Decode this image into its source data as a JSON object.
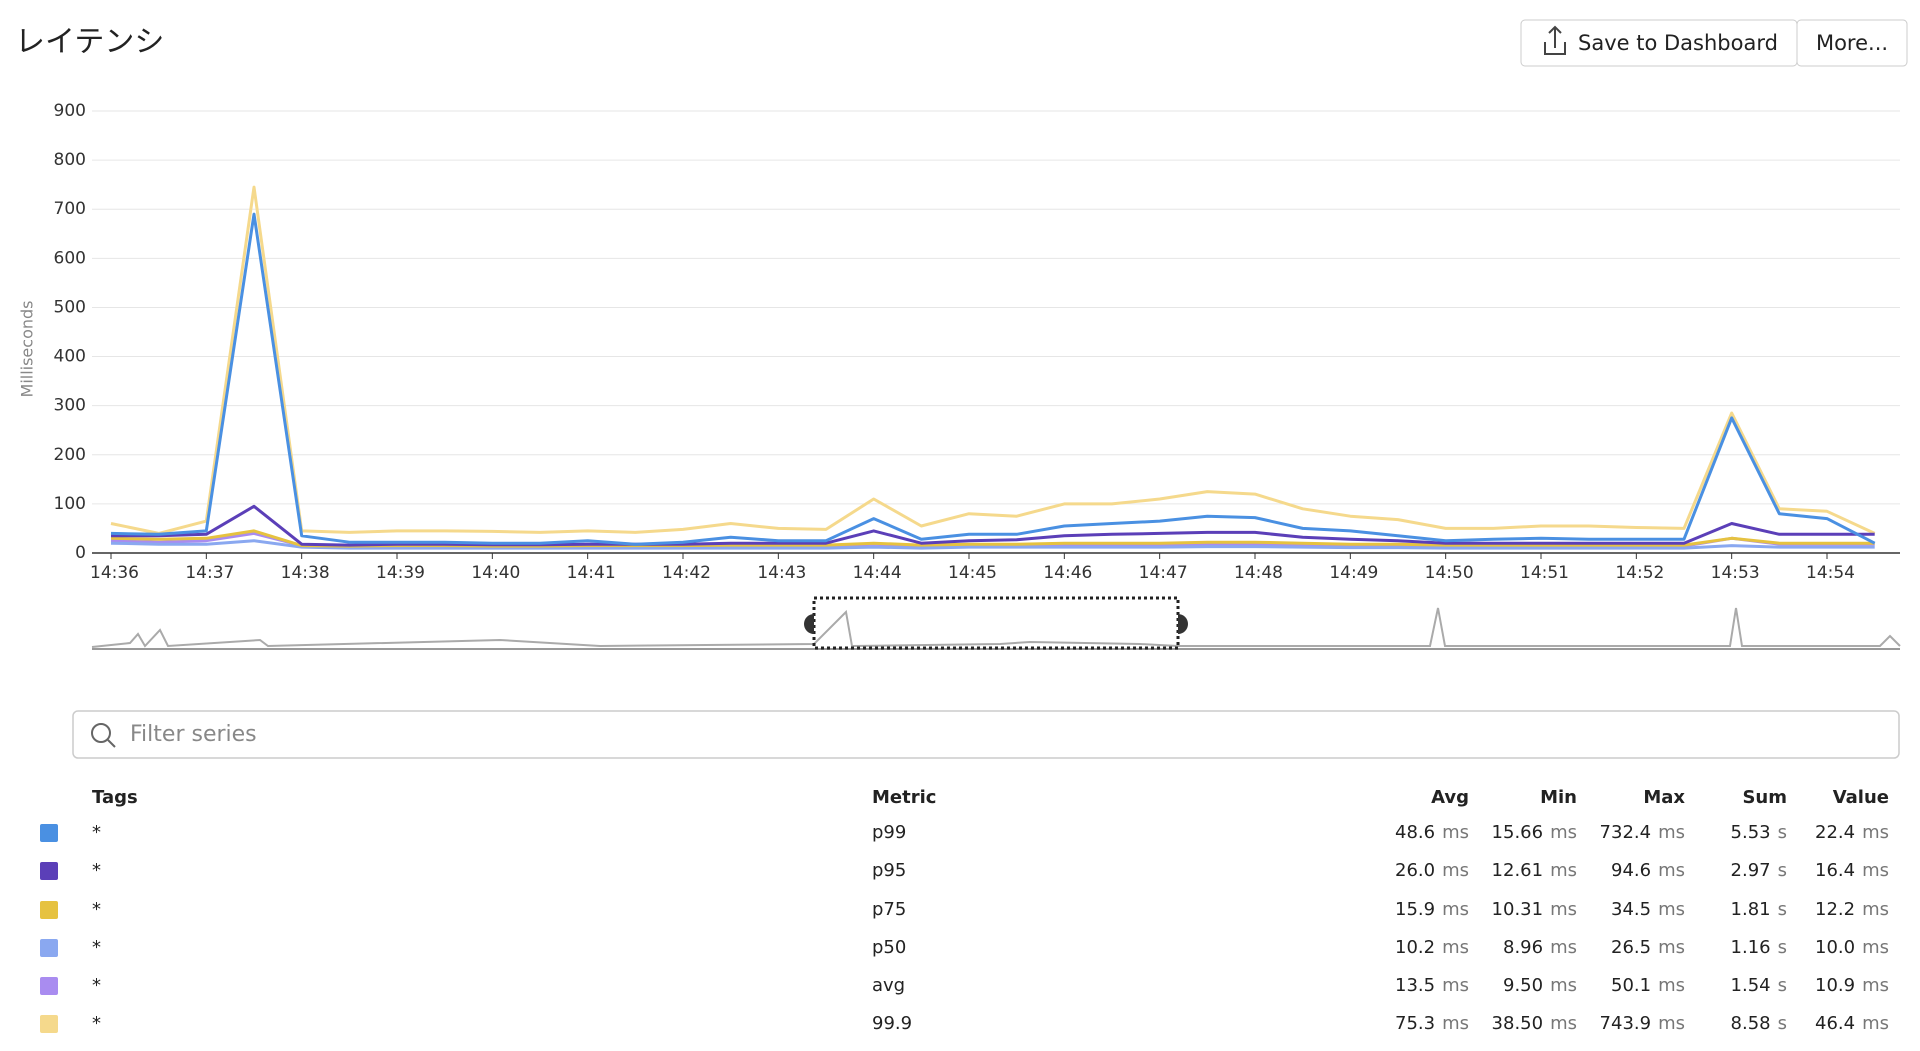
{
  "header": {
    "title": "レイテンシ",
    "buttons": [
      "Save to Dashboard",
      "More..."
    ]
  },
  "chart_data": {
    "type": "line",
    "ylabel": "Milliseconds",
    "categories": [
      "14:36",
      null,
      "14:37",
      null,
      "14:38",
      null,
      "14:39",
      null,
      "14:40",
      null,
      "14:41",
      null,
      "14:42",
      null,
      "14:43",
      null,
      "14:44",
      null,
      "14:45",
      null,
      "14:46",
      null,
      "14:47",
      null,
      "14:48",
      null,
      "14:49",
      null,
      "14:50",
      null,
      "14:51",
      null,
      "14:52",
      null,
      "14:53",
      null,
      "14:54",
      null
    ],
    "ylim": [
      0,
      900
    ],
    "yticks": [
      0,
      100,
      200,
      300,
      400,
      500,
      600,
      700,
      800,
      900
    ],
    "grid": true,
    "series": [
      {
        "name": "p99",
        "color": "#4a90e2",
        "values": [
          40,
          38,
          45,
          690,
          35,
          22,
          22,
          22,
          20,
          20,
          25,
          18,
          22,
          32,
          25,
          25,
          70,
          28,
          38,
          38,
          55,
          60,
          65,
          75,
          72,
          50,
          45,
          35,
          25,
          28,
          30,
          28,
          28,
          28,
          275,
          80,
          70,
          20
        ]
      },
      {
        "name": "p95",
        "color": "#5b3fb8",
        "values": [
          35,
          35,
          38,
          95,
          18,
          16,
          18,
          18,
          17,
          17,
          18,
          18,
          18,
          20,
          20,
          20,
          45,
          20,
          25,
          27,
          35,
          38,
          40,
          42,
          42,
          32,
          28,
          25,
          20,
          20,
          20,
          20,
          20,
          20,
          60,
          38,
          38,
          38
        ]
      },
      {
        "name": "p75",
        "color": "#e6c240",
        "values": [
          30,
          28,
          30,
          45,
          15,
          14,
          15,
          15,
          14,
          14,
          15,
          15,
          15,
          16,
          16,
          16,
          20,
          16,
          18,
          18,
          20,
          20,
          20,
          22,
          22,
          20,
          18,
          18,
          16,
          16,
          16,
          16,
          16,
          16,
          30,
          20,
          20,
          20
        ]
      },
      {
        "name": "p50",
        "color": "#8aa8f0",
        "values": [
          20,
          18,
          18,
          25,
          12,
          10,
          10,
          10,
          10,
          10,
          10,
          10,
          10,
          10,
          10,
          10,
          12,
          10,
          12,
          12,
          12,
          12,
          12,
          13,
          13,
          12,
          11,
          11,
          10,
          10,
          10,
          10,
          10,
          10,
          15,
          12,
          12,
          12
        ]
      },
      {
        "name": "avg",
        "color": "#a98cf0",
        "values": [
          25,
          22,
          25,
          40,
          15,
          13,
          13,
          13,
          13,
          13,
          13,
          13,
          13,
          14,
          14,
          14,
          18,
          14,
          15,
          15,
          16,
          16,
          17,
          18,
          18,
          16,
          15,
          15,
          14,
          14,
          14,
          14,
          14,
          14,
          30,
          18,
          18,
          18
        ]
      },
      {
        "name": "99.9",
        "color": "#f5d98c",
        "values": [
          60,
          40,
          65,
          745,
          45,
          42,
          45,
          45,
          44,
          42,
          45,
          42,
          48,
          60,
          50,
          48,
          110,
          55,
          80,
          75,
          100,
          100,
          110,
          125,
          120,
          90,
          75,
          68,
          50,
          50,
          55,
          55,
          52,
          50,
          285,
          90,
          85,
          40
        ]
      }
    ]
  },
  "filter": {
    "placeholder": "Filter series"
  },
  "table": {
    "columns": [
      "Tags",
      "Metric",
      "Avg",
      "Min",
      "Max",
      "Sum",
      "Value"
    ],
    "rows": [
      {
        "tags": "*",
        "stats": [
          [
            "48.6",
            "ms"
          ],
          [
            "15.66",
            "ms"
          ],
          [
            "732.4",
            "ms"
          ],
          [
            "5.53",
            "s"
          ],
          [
            "22.4",
            "ms"
          ]
        ]
      },
      {
        "tags": "*",
        "stats": [
          [
            "26.0",
            "ms"
          ],
          [
            "12.61",
            "ms"
          ],
          [
            "94.6",
            "ms"
          ],
          [
            "2.97",
            "s"
          ],
          [
            "16.4",
            "ms"
          ]
        ]
      },
      {
        "tags": "*",
        "stats": [
          [
            "15.9",
            "ms"
          ],
          [
            "10.31",
            "ms"
          ],
          [
            "34.5",
            "ms"
          ],
          [
            "1.81",
            "s"
          ],
          [
            "12.2",
            "ms"
          ]
        ]
      },
      {
        "tags": "*",
        "stats": [
          [
            "10.2",
            "ms"
          ],
          [
            "8.96",
            "ms"
          ],
          [
            "26.5",
            "ms"
          ],
          [
            "1.16",
            "s"
          ],
          [
            "10.0",
            "ms"
          ]
        ]
      },
      {
        "tags": "*",
        "stats": [
          [
            "13.5",
            "ms"
          ],
          [
            "9.50",
            "ms"
          ],
          [
            "50.1",
            "ms"
          ],
          [
            "1.54",
            "s"
          ],
          [
            "10.9",
            "ms"
          ]
        ]
      },
      {
        "tags": "*",
        "stats": [
          [
            "75.3",
            "ms"
          ],
          [
            "38.50",
            "ms"
          ],
          [
            "743.9",
            "ms"
          ],
          [
            "8.58",
            "s"
          ],
          [
            "46.4",
            "ms"
          ]
        ]
      }
    ]
  }
}
